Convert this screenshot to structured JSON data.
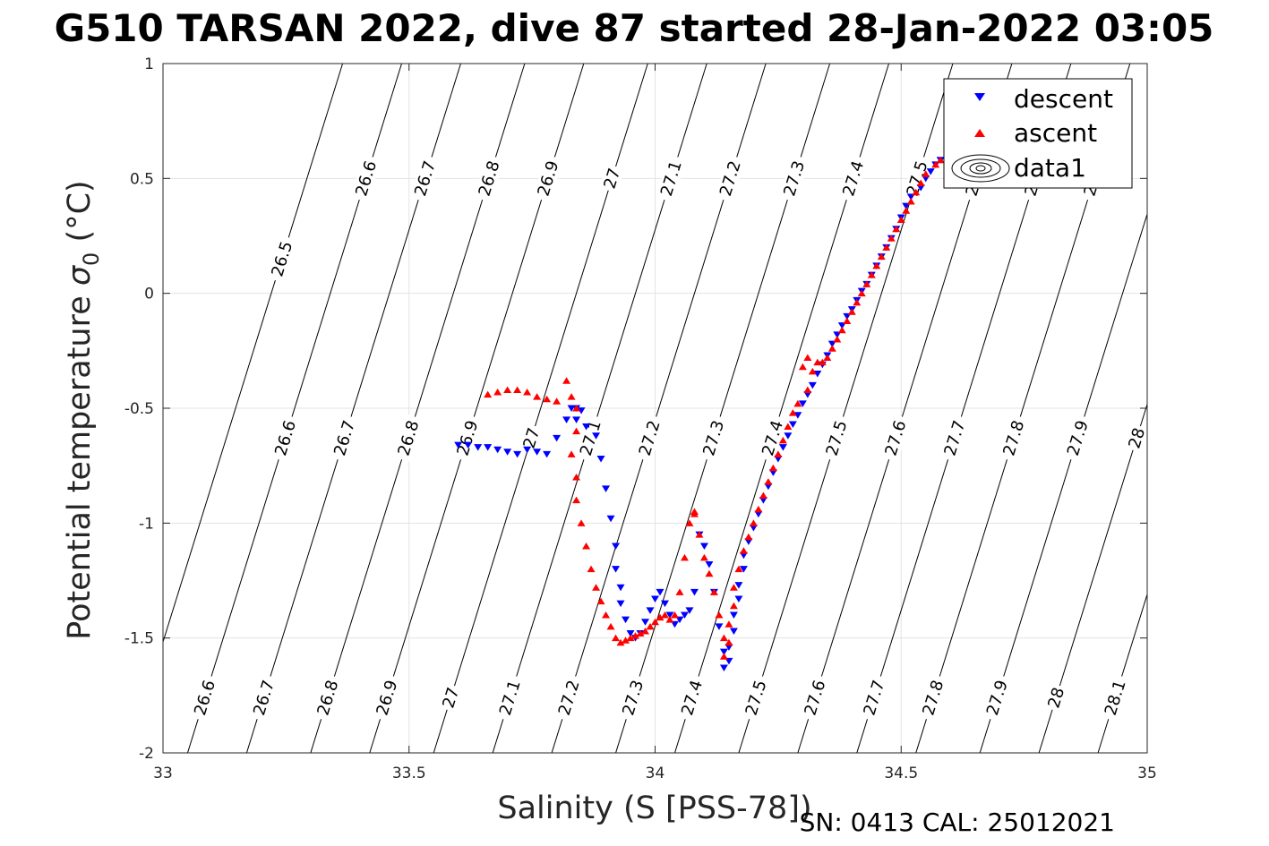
{
  "chart_data": {
    "type": "scatter",
    "title": "G510 TARSAN 2022, dive 87 started 28-Jan-2022 03:05",
    "xlabel": "Salinity (S [PSS-78])",
    "ylabel_main": "Potential temperature ",
    "ylabel_symbol": "σ",
    "ylabel_subscript": "0",
    "ylabel_unit": " (°C)",
    "xlim": [
      33,
      35
    ],
    "ylim": [
      -2,
      1
    ],
    "xticks": [
      33,
      33.5,
      34,
      34.5,
      35
    ],
    "xtick_labels": [
      "33",
      "33.5",
      "34",
      "34.5",
      "35"
    ],
    "yticks": [
      1,
      0.5,
      0,
      -0.5,
      -1,
      -1.5,
      -2
    ],
    "ytick_labels": [
      "1",
      "0.5",
      "0",
      "-0.5",
      "-1",
      "-1.5",
      "-2"
    ],
    "grid": true,
    "legend_position": "top-right",
    "legend": [
      "descent",
      "ascent",
      "data1"
    ],
    "footer": "SN: 0413  CAL: 25012021",
    "contours": {
      "levels": [
        26.5,
        26.6,
        26.7,
        26.8,
        26.9,
        27,
        27.1,
        27.2,
        27.3,
        27.4,
        27.5,
        27.6,
        27.7,
        27.8,
        27.9,
        28,
        28.1
      ],
      "labels": [
        "26.5",
        "26.6",
        "26.7",
        "26.8",
        "26.9",
        "27",
        "27.1",
        "27.2",
        "27.3",
        "27.4",
        "27.5",
        "27.6",
        "27.7",
        "27.8",
        "27.9",
        "28",
        "28.1"
      ],
      "salinity_at_minus2": [
        32.93,
        33.05,
        33.17,
        33.3,
        33.42,
        33.55,
        33.67,
        33.79,
        33.92,
        34.04,
        34.17,
        34.29,
        34.41,
        34.53,
        34.66,
        34.78,
        34.9
      ],
      "salinity_per_degree": 0.145
    },
    "series": [
      {
        "name": "descent",
        "marker": "triangle-down",
        "color": "#0000ff",
        "x": [
          34.58,
          34.57,
          34.56,
          34.55,
          34.54,
          34.52,
          34.51,
          34.5,
          34.49,
          34.48,
          34.47,
          34.46,
          34.45,
          34.44,
          34.43,
          34.42,
          34.41,
          34.4,
          34.39,
          34.38,
          34.37,
          34.36,
          34.35,
          34.34,
          34.33,
          34.32,
          34.31,
          34.3,
          34.29,
          34.28,
          34.27,
          34.26,
          34.25,
          34.24,
          34.23,
          34.22,
          34.21,
          34.2,
          34.19,
          34.18,
          34.18,
          34.17,
          34.17,
          34.16,
          34.16,
          34.15,
          34.15,
          34.14,
          34.14,
          34.13,
          34.12,
          34.11,
          34.1,
          34.09,
          34.08,
          34.07,
          34.06,
          34.05,
          34.04,
          34.03,
          34.02,
          34.01,
          34.0,
          33.99,
          33.98,
          33.97,
          33.96,
          33.95,
          33.94,
          33.93,
          33.93,
          33.92,
          33.92,
          33.91,
          33.9,
          33.89,
          33.88,
          33.86,
          33.84,
          33.85,
          33.84,
          33.83,
          33.82,
          33.8,
          33.78,
          33.76,
          33.74,
          33.72,
          33.7,
          33.68,
          33.66,
          33.64,
          33.62,
          33.6
        ],
        "y": [
          0.58,
          0.56,
          0.53,
          0.5,
          0.46,
          0.42,
          0.38,
          0.33,
          0.28,
          0.24,
          0.2,
          0.16,
          0.12,
          0.08,
          0.04,
          0.01,
          -0.03,
          -0.07,
          -0.1,
          -0.14,
          -0.18,
          -0.22,
          -0.27,
          -0.31,
          -0.35,
          -0.4,
          -0.44,
          -0.48,
          -0.53,
          -0.57,
          -0.62,
          -0.67,
          -0.72,
          -0.78,
          -0.84,
          -0.9,
          -0.96,
          -1.02,
          -1.08,
          -1.14,
          -1.2,
          -1.27,
          -1.33,
          -1.4,
          -1.47,
          -1.54,
          -1.6,
          -1.63,
          -1.56,
          -1.45,
          -1.3,
          -1.18,
          -1.1,
          -1.05,
          -1.3,
          -1.38,
          -1.4,
          -1.42,
          -1.44,
          -1.4,
          -1.35,
          -1.3,
          -1.33,
          -1.38,
          -1.43,
          -1.48,
          -1.5,
          -1.48,
          -1.42,
          -1.35,
          -1.28,
          -1.2,
          -1.1,
          -0.98,
          -0.85,
          -0.72,
          -0.62,
          -0.58,
          -0.55,
          -0.51,
          -0.5,
          -0.5,
          -0.55,
          -0.63,
          -0.7,
          -0.69,
          -0.68,
          -0.7,
          -0.69,
          -0.68,
          -0.67,
          -0.67,
          -0.66,
          -0.66
        ]
      },
      {
        "name": "ascent",
        "marker": "triangle-up",
        "color": "#ff0000",
        "x": [
          34.58,
          34.57,
          34.55,
          34.54,
          34.53,
          34.52,
          34.51,
          34.5,
          34.49,
          34.48,
          34.47,
          34.46,
          34.45,
          34.44,
          34.43,
          34.42,
          34.41,
          34.4,
          34.39,
          34.38,
          34.37,
          34.36,
          34.35,
          34.34,
          34.33,
          34.32,
          34.31,
          34.3,
          34.31,
          34.29,
          34.28,
          34.27,
          34.26,
          34.25,
          34.24,
          34.23,
          34.22,
          34.21,
          34.2,
          34.19,
          34.18,
          34.17,
          34.16,
          34.16,
          34.15,
          34.15,
          34.14,
          34.14,
          34.13,
          34.12,
          34.11,
          34.1,
          34.09,
          34.08,
          34.08,
          34.07,
          34.06,
          34.05,
          34.04,
          34.03,
          34.02,
          34.01,
          34.0,
          33.99,
          33.98,
          33.97,
          33.96,
          33.95,
          33.94,
          33.93,
          33.92,
          33.91,
          33.9,
          33.89,
          33.88,
          33.87,
          33.86,
          33.85,
          33.84,
          33.84,
          33.83,
          33.84,
          33.84,
          33.83,
          33.82,
          33.8,
          33.78,
          33.76,
          33.74,
          33.72,
          33.7,
          33.68,
          33.66
        ],
        "y": [
          0.58,
          0.56,
          0.52,
          0.48,
          0.44,
          0.4,
          0.36,
          0.32,
          0.28,
          0.24,
          0.2,
          0.16,
          0.12,
          0.08,
          0.04,
          0.0,
          -0.04,
          -0.08,
          -0.12,
          -0.16,
          -0.2,
          -0.24,
          -0.28,
          -0.3,
          -0.3,
          -0.34,
          -0.28,
          -0.32,
          -0.42,
          -0.48,
          -0.52,
          -0.58,
          -0.64,
          -0.7,
          -0.76,
          -0.82,
          -0.88,
          -0.94,
          -1.0,
          -1.06,
          -1.12,
          -1.2,
          -1.28,
          -1.36,
          -1.44,
          -1.52,
          -1.58,
          -1.5,
          -1.4,
          -1.3,
          -1.22,
          -1.15,
          -1.05,
          -0.96,
          -0.95,
          -1.0,
          -1.15,
          -1.3,
          -1.4,
          -1.42,
          -1.4,
          -1.41,
          -1.43,
          -1.45,
          -1.47,
          -1.48,
          -1.49,
          -1.5,
          -1.51,
          -1.52,
          -1.5,
          -1.45,
          -1.4,
          -1.34,
          -1.28,
          -1.2,
          -1.1,
          -1.0,
          -0.9,
          -0.8,
          -0.7,
          -0.6,
          -0.5,
          -0.45,
          -0.38,
          -0.47,
          -0.46,
          -0.45,
          -0.43,
          -0.42,
          -0.42,
          -0.43,
          -0.44
        ]
      }
    ]
  }
}
